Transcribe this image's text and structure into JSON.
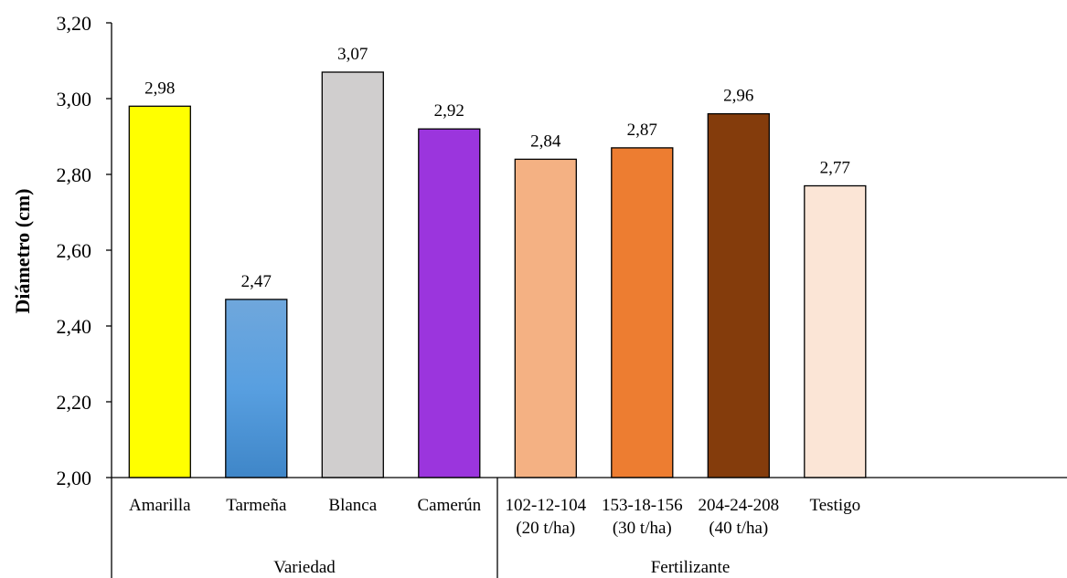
{
  "chart_data": {
    "type": "bar",
    "title": "",
    "ylabel": "Diámetro (cm)",
    "xlabel": "",
    "ylim": [
      2.0,
      3.2
    ],
    "yticks": [
      2.0,
      2.2,
      2.4,
      2.6,
      2.8,
      3.0,
      3.2
    ],
    "ytick_labels": [
      "2,00",
      "2,20",
      "2,40",
      "2,60",
      "2,80",
      "3,00",
      "3,20"
    ],
    "grid": false,
    "legend": "none",
    "groups": [
      {
        "name": "Variedad",
        "count": 4
      },
      {
        "name": "Fertilizante",
        "count": 4
      }
    ],
    "categories": [
      [
        "Amarilla"
      ],
      [
        "Tarmeña"
      ],
      [
        "Blanca"
      ],
      [
        "Camerún"
      ],
      [
        "102-12-104",
        "(20 t/ha)"
      ],
      [
        "153-18-156",
        "(30 t/ha)"
      ],
      [
        "204-24-208",
        "(40 t/ha)"
      ],
      [
        "Testigo"
      ]
    ],
    "values": [
      2.98,
      2.47,
      3.07,
      2.92,
      2.84,
      2.87,
      2.96,
      2.77
    ],
    "value_labels": [
      "2,98",
      "2,47",
      "3,07",
      "2,92",
      "2,84",
      "2,87",
      "2,96",
      "2,77"
    ],
    "colors": [
      "#ffff00",
      "#4d8fd4",
      "#d0cece",
      "#9b35dd",
      "#f4b183",
      "#ed7d31",
      "#843c0c",
      "#fbe5d6"
    ]
  }
}
